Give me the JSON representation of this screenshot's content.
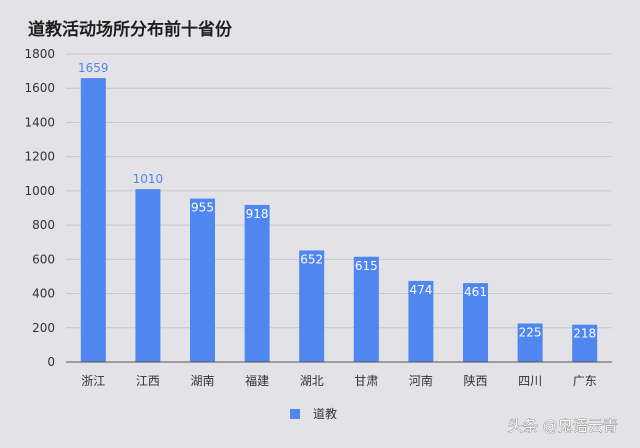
{
  "chart_data": {
    "type": "bar",
    "title": "道教活动场所分布前十省份",
    "categories": [
      "浙江",
      "江西",
      "湖南",
      "福建",
      "湖北",
      "甘肃",
      "河南",
      "陕西",
      "四川",
      "广东"
    ],
    "series": [
      {
        "name": "道教",
        "values": [
          1659,
          1010,
          955,
          918,
          652,
          615,
          474,
          461,
          225,
          218
        ],
        "color": "#4f86f0"
      }
    ],
    "ylim": [
      0,
      1800
    ],
    "yticks": [
      0,
      200,
      400,
      600,
      800,
      1000,
      1200,
      1400,
      1600,
      1800
    ],
    "grid": true,
    "legend": "bottom-center",
    "xlabel": "",
    "ylabel": ""
  },
  "watermark": "头条 @鬼语云青"
}
